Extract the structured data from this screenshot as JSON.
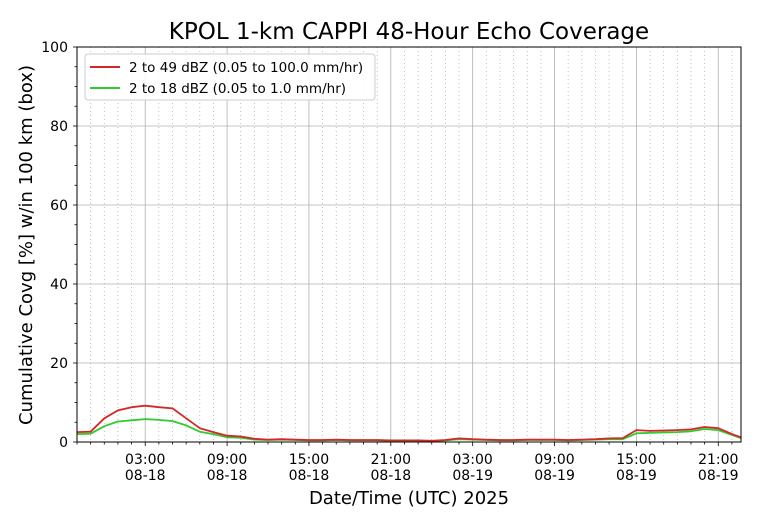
{
  "chart_data": {
    "type": "line",
    "title": "KPOL 1-km CAPPI 48-Hour Echo Coverage",
    "xlabel": "Date/Time (UTC) 2025",
    "ylabel": "Cumulative Covg [%] w/in 100 km (box)",
    "ylim": [
      0,
      100
    ],
    "yticks": [
      "0",
      "20",
      "40",
      "60",
      "80",
      "100"
    ],
    "xlim": [
      "2025-08-17 22:00",
      "2025-08-19 22:40"
    ],
    "xticks": [
      {
        "time": "03:00",
        "date": "08-18",
        "at": "2025-08-18 03:00"
      },
      {
        "time": "09:00",
        "date": "08-18",
        "at": "2025-08-18 09:00"
      },
      {
        "time": "15:00",
        "date": "08-18",
        "at": "2025-08-18 15:00"
      },
      {
        "time": "21:00",
        "date": "08-18",
        "at": "2025-08-18 21:00"
      },
      {
        "time": "03:00",
        "date": "08-19",
        "at": "2025-08-19 03:00"
      },
      {
        "time": "09:00",
        "date": "08-19",
        "at": "2025-08-19 09:00"
      },
      {
        "time": "15:00",
        "date": "08-19",
        "at": "2025-08-19 15:00"
      },
      {
        "time": "21:00",
        "date": "08-19",
        "at": "2025-08-19 21:00"
      }
    ],
    "grid": true,
    "legend_position": "top-left",
    "x": [
      "2025-08-17 22:00",
      "2025-08-17 23:00",
      "2025-08-18 00:00",
      "2025-08-18 01:00",
      "2025-08-18 02:00",
      "2025-08-18 03:00",
      "2025-08-18 04:00",
      "2025-08-18 05:00",
      "2025-08-18 06:00",
      "2025-08-18 07:00",
      "2025-08-18 08:00",
      "2025-08-18 09:00",
      "2025-08-18 10:00",
      "2025-08-18 11:00",
      "2025-08-18 12:00",
      "2025-08-18 13:00",
      "2025-08-18 14:00",
      "2025-08-18 15:00",
      "2025-08-18 16:00",
      "2025-08-18 17:00",
      "2025-08-18 18:00",
      "2025-08-18 19:00",
      "2025-08-18 20:00",
      "2025-08-18 21:00",
      "2025-08-18 22:00",
      "2025-08-18 23:00",
      "2025-08-19 00:00",
      "2025-08-19 01:00",
      "2025-08-19 02:00",
      "2025-08-19 03:00",
      "2025-08-19 04:00",
      "2025-08-19 05:00",
      "2025-08-19 06:00",
      "2025-08-19 07:00",
      "2025-08-19 08:00",
      "2025-08-19 09:00",
      "2025-08-19 10:00",
      "2025-08-19 11:00",
      "2025-08-19 12:00",
      "2025-08-19 13:00",
      "2025-08-19 14:00",
      "2025-08-19 15:00",
      "2025-08-19 16:00",
      "2025-08-19 17:00",
      "2025-08-19 18:00",
      "2025-08-19 19:00",
      "2025-08-19 20:00",
      "2025-08-19 21:00",
      "2025-08-19 22:00",
      "2025-08-19 22:40"
    ],
    "series": [
      {
        "name": "2 to 49 dBZ (0.05 to 100.0 mm/hr)",
        "color": "#d62728",
        "values": [
          2.5,
          2.6,
          6.0,
          8.0,
          8.8,
          9.2,
          8.8,
          8.5,
          6.0,
          3.5,
          2.5,
          1.6,
          1.4,
          0.8,
          0.6,
          0.7,
          0.6,
          0.5,
          0.5,
          0.6,
          0.5,
          0.5,
          0.5,
          0.4,
          0.4,
          0.4,
          0.3,
          0.5,
          0.9,
          0.7,
          0.6,
          0.5,
          0.5,
          0.6,
          0.6,
          0.6,
          0.5,
          0.6,
          0.7,
          0.9,
          1.0,
          3.0,
          2.8,
          2.9,
          3.0,
          3.2,
          3.8,
          3.5,
          2.0,
          1.2
        ]
      },
      {
        "name": "2 to 18 dBZ (0.05 to 1.0 mm/hr)",
        "color": "#2ecc2e",
        "values": [
          2.0,
          2.1,
          4.0,
          5.2,
          5.5,
          5.8,
          5.6,
          5.3,
          4.2,
          2.6,
          2.0,
          1.2,
          1.1,
          0.6,
          0.5,
          0.6,
          0.5,
          0.4,
          0.4,
          0.5,
          0.4,
          0.4,
          0.4,
          0.3,
          0.3,
          0.3,
          0.2,
          0.4,
          0.7,
          0.6,
          0.5,
          0.4,
          0.4,
          0.5,
          0.5,
          0.5,
          0.4,
          0.5,
          0.6,
          0.7,
          0.7,
          2.2,
          2.3,
          2.4,
          2.5,
          2.7,
          3.3,
          3.0,
          1.8,
          1.0
        ]
      }
    ]
  }
}
